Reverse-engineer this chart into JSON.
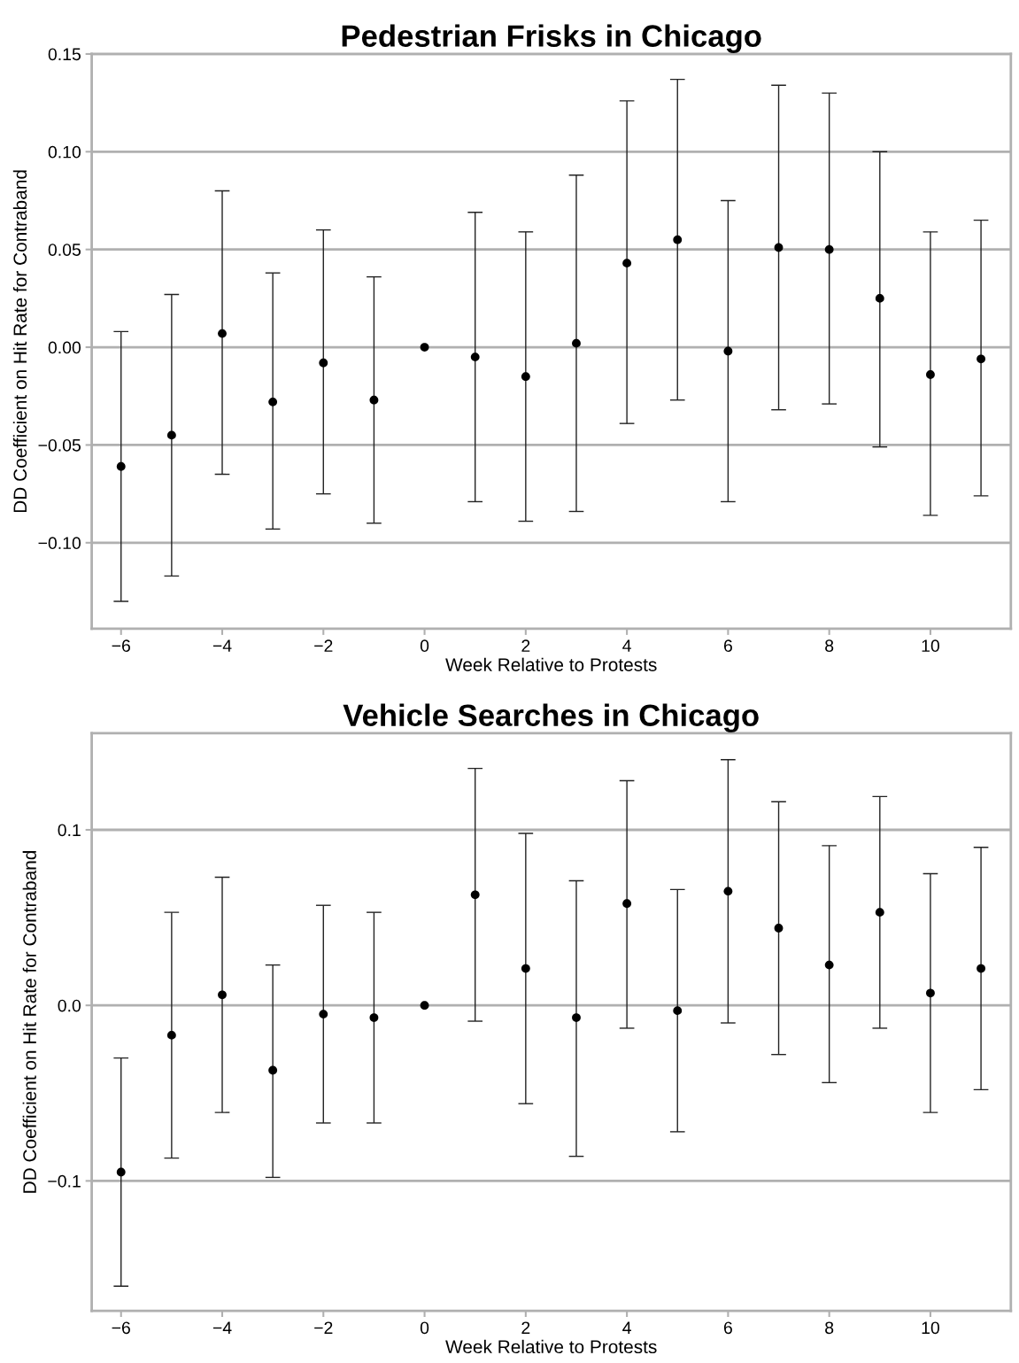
{
  "chart_data": [
    {
      "type": "scatter",
      "title": "Pedestrian Frisks in Chicago",
      "xlabel": "Week Relative to Protests",
      "ylabel": "DD Coefficient on Hit Rate for Contraband",
      "x": [
        -6,
        -5,
        -4,
        -3,
        -2,
        -1,
        0,
        1,
        2,
        3,
        4,
        5,
        6,
        7,
        8,
        9,
        10,
        11
      ],
      "values": [
        -0.061,
        -0.045,
        0.007,
        -0.028,
        -0.008,
        -0.027,
        0.0,
        -0.005,
        -0.015,
        0.002,
        0.043,
        0.055,
        -0.002,
        0.051,
        0.05,
        0.025,
        -0.014,
        -0.006
      ],
      "errors": [
        [
          -0.13,
          0.008
        ],
        [
          -0.117,
          0.027
        ],
        [
          -0.065,
          0.08
        ],
        [
          -0.093,
          0.038
        ],
        [
          -0.075,
          0.06
        ],
        [
          -0.09,
          0.036
        ],
        null,
        [
          -0.079,
          0.069
        ],
        [
          -0.089,
          0.059
        ],
        [
          -0.084,
          0.088
        ],
        [
          -0.039,
          0.126
        ],
        [
          -0.027,
          0.137
        ],
        [
          -0.079,
          0.075
        ],
        [
          -0.032,
          0.134
        ],
        [
          -0.029,
          0.13
        ],
        [
          -0.051,
          0.1
        ],
        [
          -0.086,
          0.059
        ],
        [
          -0.076,
          0.065
        ]
      ],
      "color": "#000000",
      "marker": "circle",
      "xlim": [
        -6.58,
        11.59
      ],
      "xticks": [
        {
          "value": -6,
          "label": "−6"
        },
        {
          "value": -4,
          "label": "−4"
        },
        {
          "value": -2,
          "label": "−2"
        },
        0,
        2,
        4,
        6,
        8,
        10
      ],
      "ylim": [
        -0.144,
        0.15
      ],
      "yticks": [
        {
          "value": -0.1,
          "label": "−0.10"
        },
        {
          "value": -0.05,
          "label": "−0.05"
        },
        {
          "value": 0,
          "label": "0.00"
        },
        {
          "value": 0.05,
          "label": "0.05"
        },
        {
          "value": 0.1,
          "label": "0.10"
        },
        {
          "value": 0.15,
          "label": "0.15"
        }
      ],
      "grid": "y"
    },
    {
      "type": "scatter",
      "title": "Vehicle Searches in Chicago",
      "xlabel": "Week Relative to Protests",
      "ylabel": "DD Coefficient on Hit Rate for Contraband",
      "x": [
        -6,
        -5,
        -4,
        -3,
        -2,
        -1,
        0,
        1,
        2,
        3,
        4,
        5,
        6,
        7,
        8,
        9,
        10,
        11
      ],
      "values": [
        -0.095,
        -0.017,
        0.006,
        -0.037,
        -0.005,
        -0.007,
        0.0,
        0.063,
        0.021,
        -0.007,
        0.058,
        -0.003,
        0.065,
        0.044,
        0.023,
        0.053,
        0.007,
        0.021
      ],
      "errors": [
        [
          -0.16,
          -0.03
        ],
        [
          -0.087,
          0.053
        ],
        [
          -0.061,
          0.073
        ],
        [
          -0.098,
          0.023
        ],
        [
          -0.067,
          0.057
        ],
        [
          -0.067,
          0.053
        ],
        null,
        [
          -0.009,
          0.135
        ],
        [
          -0.056,
          0.098
        ],
        [
          -0.086,
          0.071
        ],
        [
          -0.013,
          0.128
        ],
        [
          -0.072,
          0.066
        ],
        [
          -0.01,
          0.14
        ],
        [
          -0.028,
          0.116
        ],
        [
          -0.044,
          0.091
        ],
        [
          -0.013,
          0.119
        ],
        [
          -0.061,
          0.075
        ],
        [
          -0.048,
          0.09
        ]
      ],
      "color": "#000000",
      "marker": "circle",
      "xlim": [
        -6.58,
        11.59
      ],
      "xticks": [
        {
          "value": -6,
          "label": "−6"
        },
        {
          "value": -4,
          "label": "−4"
        },
        {
          "value": -2,
          "label": "−2"
        },
        0,
        2,
        4,
        6,
        8,
        10
      ],
      "ylim": [
        -0.174,
        0.155
      ],
      "yticks": [
        {
          "value": -0.1,
          "label": "−0.1"
        },
        {
          "value": 0,
          "label": "0.0"
        },
        {
          "value": 0.1,
          "label": "0.1"
        }
      ],
      "grid": "y"
    }
  ]
}
